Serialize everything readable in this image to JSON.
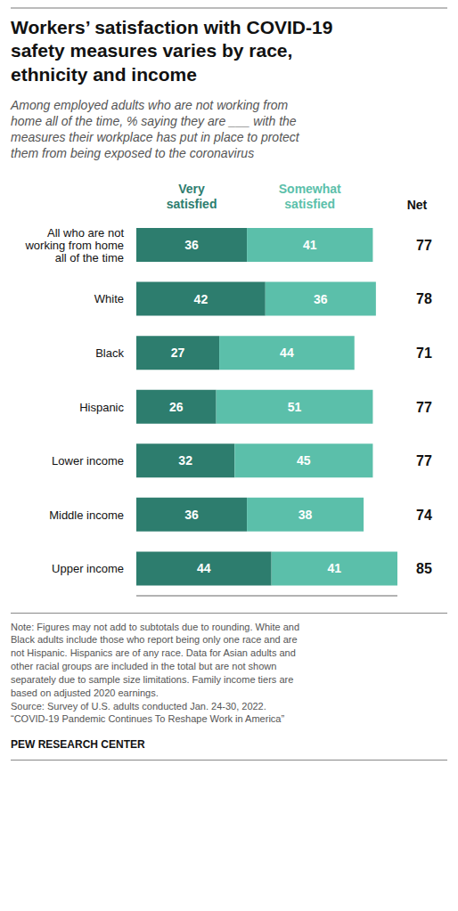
{
  "chart_data": {
    "type": "bar",
    "title": "Workers’ satisfaction with COVID-19\nsafety measures varies by race,\nethnicity and income",
    "subtitle": "Among employed adults who are not working from\nhome all of the time, % saying they are ___ with the\nmeasures their workplace has put in place to protect\nthem from being exposed to the coronavirus",
    "orientation": "horizontal",
    "stacked": true,
    "data_labels": true,
    "tick_labels": "y",
    "grid": false,
    "categories": [
      "All who are not\nworking from home\nall of the time",
      "White",
      "Black",
      "Hispanic",
      "Lower income",
      "Middle income",
      "Upper income"
    ],
    "series": [
      {
        "name": "Very\nsatisfied",
        "color": "#2d7d6e",
        "values": [
          36,
          42,
          27,
          26,
          32,
          36,
          44
        ]
      },
      {
        "name": "Somewhat\nsatisfied",
        "color": "#5bbfaa",
        "values": [
          41,
          36,
          44,
          51,
          45,
          38,
          41
        ]
      }
    ],
    "net": {
      "name": "Net",
      "values": [
        77,
        78,
        71,
        77,
        77,
        74,
        85
      ]
    },
    "xlim": [
      0,
      85
    ],
    "note": "Note: Figures may not add to subtotals due to rounding. White and\nBlack adults include those who report being only one race and are\nnot Hispanic. Hispanics are of any race. Data for Asian adults and\nother racial groups are included in the total but are not shown\nseparately due to sample size limitations. Family income tiers are\nbased on adjusted 2020 earnings.\nSource: Survey of U.S. adults conducted Jan. 24-30, 2022.\n“COVID-19 Pandemic Continues To Reshape Work in America”",
    "source": "PEW RESEARCH CENTER"
  }
}
